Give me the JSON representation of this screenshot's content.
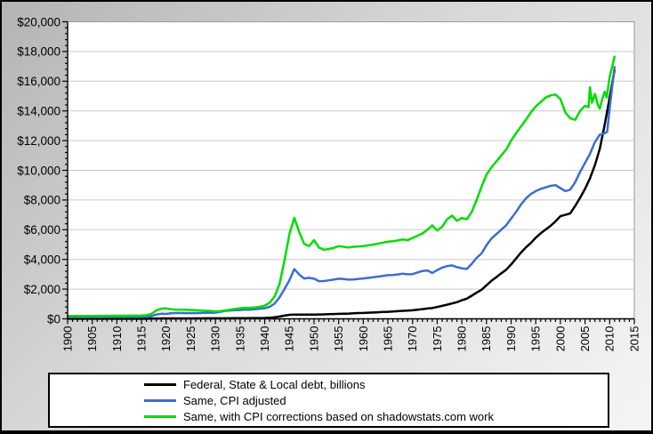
{
  "chart_data": {
    "type": "line",
    "title": "",
    "x_axis": {
      "label": "",
      "min": 1900,
      "max": 2015,
      "major_tick_interval": 5,
      "minor_tick_interval": 1,
      "tick_labels": [
        "1900",
        "1905",
        "1910",
        "1915",
        "1920",
        "1925",
        "1930",
        "1935",
        "1940",
        "1945",
        "1950",
        "1955",
        "1960",
        "1965",
        "1970",
        "1975",
        "1980",
        "1985",
        "1990",
        "1995",
        "2000",
        "2005",
        "2010",
        "2015"
      ],
      "tick_label_rotation_deg": -90
    },
    "y_axis": {
      "label": "",
      "min": 0,
      "max": 20000,
      "major_tick_interval": 2000,
      "minor_tick_interval": 400,
      "tick_labels": [
        "$0",
        "$2,000",
        "$4,000",
        "$6,000",
        "$8,000",
        "$10,000",
        "$12,000",
        "$14,000",
        "$16,000",
        "$18,000",
        "$20,000"
      ]
    },
    "grid": "horizontal major gridlines",
    "legend_position": "bottom boxed",
    "plot_bg_color": "#ffffff",
    "outer_bg_color": "gray gradient",
    "series": [
      {
        "name": "Federal, State & Local debt, billions",
        "color": "#000000",
        "points": [
          [
            1900,
            3
          ],
          [
            1905,
            4
          ],
          [
            1910,
            5
          ],
          [
            1915,
            6
          ],
          [
            1916,
            7
          ],
          [
            1917,
            12
          ],
          [
            1918,
            22
          ],
          [
            1919,
            28
          ],
          [
            1920,
            30
          ],
          [
            1922,
            31
          ],
          [
            1925,
            32
          ],
          [
            1928,
            33
          ],
          [
            1930,
            34
          ],
          [
            1932,
            38
          ],
          [
            1934,
            43
          ],
          [
            1936,
            49
          ],
          [
            1938,
            53
          ],
          [
            1940,
            61
          ],
          [
            1941,
            75
          ],
          [
            1942,
            105
          ],
          [
            1943,
            155
          ],
          [
            1944,
            215
          ],
          [
            1945,
            268
          ],
          [
            1946,
            290
          ],
          [
            1947,
            285
          ],
          [
            1948,
            281
          ],
          [
            1949,
            285
          ],
          [
            1950,
            290
          ],
          [
            1951,
            292
          ],
          [
            1952,
            300
          ],
          [
            1953,
            312
          ],
          [
            1954,
            322
          ],
          [
            1955,
            335
          ],
          [
            1956,
            345
          ],
          [
            1957,
            355
          ],
          [
            1958,
            370
          ],
          [
            1959,
            388
          ],
          [
            1960,
            398
          ],
          [
            1961,
            412
          ],
          [
            1962,
            428
          ],
          [
            1963,
            443
          ],
          [
            1964,
            460
          ],
          [
            1965,
            476
          ],
          [
            1966,
            492
          ],
          [
            1967,
            512
          ],
          [
            1968,
            540
          ],
          [
            1969,
            552
          ],
          [
            1970,
            575
          ],
          [
            1971,
            615
          ],
          [
            1972,
            655
          ],
          [
            1973,
            695
          ],
          [
            1974,
            725
          ],
          [
            1975,
            795
          ],
          [
            1976,
            875
          ],
          [
            1977,
            955
          ],
          [
            1978,
            1035
          ],
          [
            1979,
            1120
          ],
          [
            1980,
            1250
          ],
          [
            1981,
            1360
          ],
          [
            1982,
            1555
          ],
          [
            1983,
            1760
          ],
          [
            1984,
            1960
          ],
          [
            1985,
            2255
          ],
          [
            1986,
            2555
          ],
          [
            1987,
            2810
          ],
          [
            1988,
            3060
          ],
          [
            1989,
            3310
          ],
          [
            1990,
            3660
          ],
          [
            1991,
            4060
          ],
          [
            1992,
            4460
          ],
          [
            1993,
            4810
          ],
          [
            1994,
            5110
          ],
          [
            1995,
            5460
          ],
          [
            1996,
            5760
          ],
          [
            1997,
            6010
          ],
          [
            1998,
            6260
          ],
          [
            1999,
            6560
          ],
          [
            2000,
            6910
          ],
          [
            2001,
            7000
          ],
          [
            2002,
            7100
          ],
          [
            2003,
            7600
          ],
          [
            2004,
            8150
          ],
          [
            2005,
            8750
          ],
          [
            2006,
            9450
          ],
          [
            2007,
            10350
          ],
          [
            2008,
            11450
          ],
          [
            2009,
            13100
          ],
          [
            2010,
            14900
          ],
          [
            2011,
            16750
          ]
        ]
      },
      {
        "name": "Same, CPI adjusted",
        "color": "#3b6cd4",
        "points": [
          [
            1900,
            95
          ],
          [
            1905,
            105
          ],
          [
            1910,
            115
          ],
          [
            1915,
            122
          ],
          [
            1916,
            132
          ],
          [
            1917,
            175
          ],
          [
            1918,
            290
          ],
          [
            1919,
            340
          ],
          [
            1920,
            330
          ],
          [
            1921,
            370
          ],
          [
            1922,
            395
          ],
          [
            1924,
            385
          ],
          [
            1926,
            385
          ],
          [
            1928,
            400
          ],
          [
            1930,
            415
          ],
          [
            1931,
            470
          ],
          [
            1932,
            540
          ],
          [
            1933,
            565
          ],
          [
            1934,
            580
          ],
          [
            1935,
            595
          ],
          [
            1936,
            625
          ],
          [
            1937,
            615
          ],
          [
            1938,
            645
          ],
          [
            1939,
            680
          ],
          [
            1940,
            715
          ],
          [
            1941,
            810
          ],
          [
            1942,
            1020
          ],
          [
            1943,
            1450
          ],
          [
            1944,
            2000
          ],
          [
            1945,
            2600
          ],
          [
            1946,
            3350
          ],
          [
            1947,
            2980
          ],
          [
            1948,
            2720
          ],
          [
            1949,
            2760
          ],
          [
            1950,
            2700
          ],
          [
            1951,
            2540
          ],
          [
            1952,
            2545
          ],
          [
            1953,
            2590
          ],
          [
            1954,
            2640
          ],
          [
            1955,
            2700
          ],
          [
            1956,
            2680
          ],
          [
            1957,
            2640
          ],
          [
            1958,
            2650
          ],
          [
            1959,
            2690
          ],
          [
            1960,
            2720
          ],
          [
            1962,
            2800
          ],
          [
            1964,
            2890
          ],
          [
            1965,
            2940
          ],
          [
            1966,
            2950
          ],
          [
            1967,
            2990
          ],
          [
            1968,
            3040
          ],
          [
            1969,
            3000
          ],
          [
            1970,
            3010
          ],
          [
            1971,
            3120
          ],
          [
            1972,
            3220
          ],
          [
            1973,
            3260
          ],
          [
            1974,
            3090
          ],
          [
            1975,
            3280
          ],
          [
            1976,
            3450
          ],
          [
            1977,
            3550
          ],
          [
            1978,
            3600
          ],
          [
            1979,
            3480
          ],
          [
            1980,
            3400
          ],
          [
            1981,
            3360
          ],
          [
            1982,
            3700
          ],
          [
            1983,
            4100
          ],
          [
            1984,
            4400
          ],
          [
            1985,
            4950
          ],
          [
            1986,
            5400
          ],
          [
            1987,
            5700
          ],
          [
            1988,
            6000
          ],
          [
            1989,
            6300
          ],
          [
            1990,
            6750
          ],
          [
            1991,
            7200
          ],
          [
            1992,
            7700
          ],
          [
            1993,
            8100
          ],
          [
            1994,
            8400
          ],
          [
            1995,
            8600
          ],
          [
            1996,
            8750
          ],
          [
            1997,
            8850
          ],
          [
            1998,
            8950
          ],
          [
            1999,
            9000
          ],
          [
            2000,
            8800
          ],
          [
            2001,
            8600
          ],
          [
            2002,
            8700
          ],
          [
            2003,
            9200
          ],
          [
            2004,
            9900
          ],
          [
            2005,
            10500
          ],
          [
            2006,
            11100
          ],
          [
            2007,
            11900
          ],
          [
            2008,
            12400
          ],
          [
            2009,
            12500
          ],
          [
            2009.5,
            12600
          ],
          [
            2010,
            14200
          ],
          [
            2010.5,
            15600
          ],
          [
            2011,
            16950
          ]
        ]
      },
      {
        "name": "Same, with CPI corrections based on shadowstats.com work",
        "color": "#00dd00",
        "points": [
          [
            1900,
            200
          ],
          [
            1905,
            205
          ],
          [
            1910,
            210
          ],
          [
            1915,
            220
          ],
          [
            1916,
            240
          ],
          [
            1917,
            330
          ],
          [
            1918,
            560
          ],
          [
            1919,
            680
          ],
          [
            1920,
            700
          ],
          [
            1921,
            645
          ],
          [
            1922,
            625
          ],
          [
            1924,
            610
          ],
          [
            1925,
            600
          ],
          [
            1926,
            580
          ],
          [
            1927,
            560
          ],
          [
            1928,
            545
          ],
          [
            1929,
            530
          ],
          [
            1930,
            505
          ],
          [
            1931,
            520
          ],
          [
            1932,
            560
          ],
          [
            1933,
            620
          ],
          [
            1934,
            670
          ],
          [
            1935,
            710
          ],
          [
            1936,
            750
          ],
          [
            1937,
            745
          ],
          [
            1938,
            770
          ],
          [
            1939,
            810
          ],
          [
            1940,
            890
          ],
          [
            1941,
            1080
          ],
          [
            1942,
            1500
          ],
          [
            1943,
            2350
          ],
          [
            1944,
            3900
          ],
          [
            1945,
            5700
          ],
          [
            1946,
            6800
          ],
          [
            1947,
            5850
          ],
          [
            1948,
            5050
          ],
          [
            1949,
            4900
          ],
          [
            1950,
            5300
          ],
          [
            1951,
            4800
          ],
          [
            1952,
            4650
          ],
          [
            1953,
            4700
          ],
          [
            1954,
            4780
          ],
          [
            1955,
            4900
          ],
          [
            1956,
            4850
          ],
          [
            1957,
            4800
          ],
          [
            1958,
            4850
          ],
          [
            1960,
            4900
          ],
          [
            1962,
            5000
          ],
          [
            1964,
            5130
          ],
          [
            1965,
            5200
          ],
          [
            1966,
            5230
          ],
          [
            1967,
            5280
          ],
          [
            1968,
            5350
          ],
          [
            1969,
            5300
          ],
          [
            1970,
            5450
          ],
          [
            1971,
            5600
          ],
          [
            1972,
            5750
          ],
          [
            1973,
            6000
          ],
          [
            1974,
            6290
          ],
          [
            1975,
            5950
          ],
          [
            1976,
            6200
          ],
          [
            1977,
            6700
          ],
          [
            1978,
            6950
          ],
          [
            1979,
            6600
          ],
          [
            1980,
            6800
          ],
          [
            1981,
            6700
          ],
          [
            1982,
            7200
          ],
          [
            1983,
            8000
          ],
          [
            1984,
            8900
          ],
          [
            1985,
            9700
          ],
          [
            1986,
            10200
          ],
          [
            1987,
            10600
          ],
          [
            1988,
            11000
          ],
          [
            1989,
            11400
          ],
          [
            1990,
            12000
          ],
          [
            1991,
            12500
          ],
          [
            1992,
            12950
          ],
          [
            1993,
            13400
          ],
          [
            1994,
            13900
          ],
          [
            1995,
            14300
          ],
          [
            1996,
            14600
          ],
          [
            1997,
            14900
          ],
          [
            1998,
            15050
          ],
          [
            1999,
            15100
          ],
          [
            2000,
            14800
          ],
          [
            2001,
            13900
          ],
          [
            2002,
            13500
          ],
          [
            2003,
            13400
          ],
          [
            2004,
            14000
          ],
          [
            2005,
            14350
          ],
          [
            2005.7,
            14250
          ],
          [
            2006,
            15600
          ],
          [
            2006.4,
            14550
          ],
          [
            2007,
            15150
          ],
          [
            2007.6,
            14400
          ],
          [
            2008,
            14150
          ],
          [
            2008.5,
            14800
          ],
          [
            2009,
            15300
          ],
          [
            2009.4,
            14900
          ],
          [
            2010,
            16300
          ],
          [
            2010.6,
            17100
          ],
          [
            2011,
            17650
          ]
        ]
      }
    ]
  },
  "legend": {
    "boxed": true
  }
}
